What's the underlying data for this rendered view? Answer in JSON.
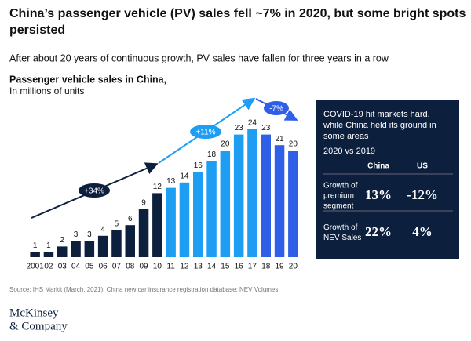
{
  "chart_data": {
    "type": "bar",
    "title": [
      "China’s passenger vehicle (PV) sales fell ~7% in 2020, but some bright spots",
      "persisted"
    ],
    "subtitle": "After about 20 years of continuous growth, PV sales have fallen for three years in a row",
    "chart_title": "Passenger vehicle sales in China,",
    "units": "In millions of units",
    "categories": [
      "2001",
      "02",
      "03",
      "04",
      "05",
      "06",
      "07",
      "08",
      "09",
      "10",
      "11",
      "12",
      "13",
      "14",
      "15",
      "16",
      "17",
      "18",
      "19",
      "20"
    ],
    "values": [
      1,
      1,
      2,
      3,
      3,
      4,
      5,
      6,
      9,
      12,
      13,
      14,
      16,
      18,
      20,
      23,
      24,
      23,
      21,
      20
    ],
    "colors": [
      "#0c1f3d",
      "#0c1f3d",
      "#0c1f3d",
      "#0c1f3d",
      "#0c1f3d",
      "#0c1f3d",
      "#0c1f3d",
      "#0c1f3d",
      "#0c1f3d",
      "#0c1f3d",
      "#1e9ef2",
      "#1e9ef2",
      "#1e9ef2",
      "#1e9ef2",
      "#1e9ef2",
      "#1e9ef2",
      "#1e9ef2",
      "#2f5fe6",
      "#2f5fe6",
      "#2f5fe6"
    ],
    "annotations": [
      "+34%",
      "+11%",
      "-7%"
    ],
    "panel": {
      "heading": [
        "COVID-19 hit markets hard,",
        "while China held its ground in",
        "some areas"
      ],
      "period": "2020 vs 2019",
      "columns": [
        "China",
        "US"
      ],
      "rows": [
        {
          "label": [
            "Growth of",
            "premium",
            "segment"
          ],
          "values": [
            "13%",
            "-12%"
          ]
        },
        {
          "label": [
            "Growth of",
            "NEV Sales"
          ],
          "values": [
            "22%",
            "4%"
          ]
        }
      ]
    },
    "source": "Source: IHS Markit (March, 2021); China new car insurance registration database; NEV Volumes",
    "logo": [
      "McKinsey",
      "& Company"
    ]
  }
}
